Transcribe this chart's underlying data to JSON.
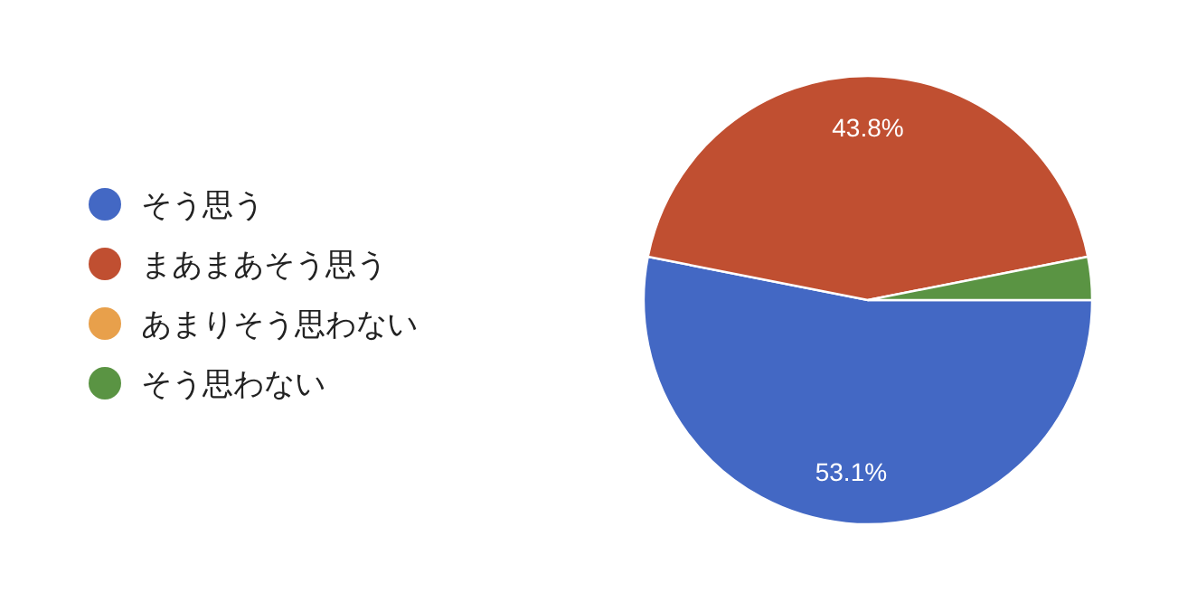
{
  "chart_data": {
    "type": "pie",
    "categories": [
      "そう思う",
      "まあまあそう思う",
      "あまりそう思わない",
      "そう思わない"
    ],
    "values": [
      53.1,
      43.8,
      0,
      3.1
    ],
    "colors": [
      "#4368c4",
      "#c04f31",
      "#e8a04b",
      "#5a9443"
    ],
    "value_labels": [
      "53.1%",
      "43.8%",
      null,
      null
    ],
    "legend": "left"
  }
}
